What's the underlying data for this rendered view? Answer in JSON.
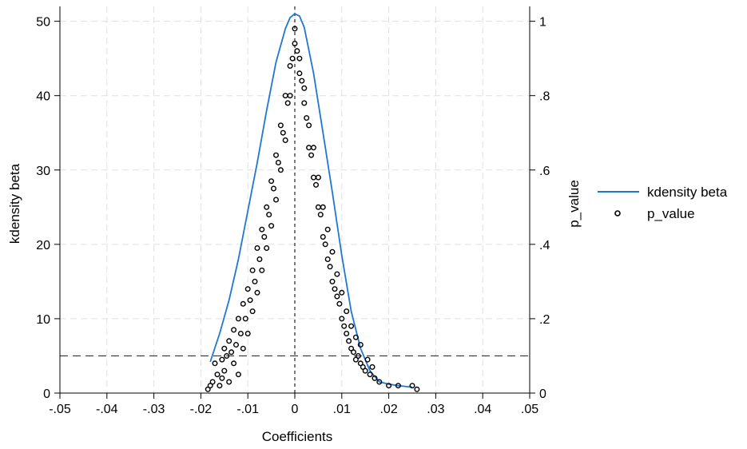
{
  "chart_data": {
    "type": "scatter",
    "title": "",
    "xlabel": "Coefficients",
    "ylabel_left": "kdensity beta",
    "ylabel_right": "p_value",
    "xlim": [
      -0.05,
      0.05
    ],
    "ylim_left": [
      0,
      52
    ],
    "ylim_right": [
      0,
      1.04
    ],
    "xticks": [
      -0.05,
      -0.04,
      -0.03,
      -0.02,
      -0.01,
      0,
      0.01,
      0.02,
      0.03,
      0.04,
      0.05
    ],
    "xtick_labels": [
      "-.05",
      "-.04",
      "-.03",
      "-.02",
      "-.01",
      "0",
      ".01",
      ".02",
      ".03",
      ".04",
      ".05"
    ],
    "yticks_left": [
      0,
      10,
      20,
      30,
      40,
      50
    ],
    "ytick_labels_left": [
      "0",
      "10",
      "20",
      "30",
      "40",
      "50"
    ],
    "yticks_right": [
      0,
      0.2,
      0.4,
      0.6,
      0.8,
      1
    ],
    "ytick_labels_right": [
      "0",
      ".2",
      ".4",
      ".6",
      ".8",
      "1"
    ],
    "grid": true,
    "legend_position": "right",
    "reference_lines": {
      "vertical_x": 0,
      "horizontal_p_value": 0.1
    },
    "colors": {
      "kdensity": "#1f77d4",
      "points": "#000000",
      "grid": "#e0e0e0",
      "reference": "#333333"
    },
    "series": [
      {
        "name": "kdensity beta",
        "kind": "line",
        "axis": "left",
        "x": [
          -0.018,
          -0.016,
          -0.014,
          -0.012,
          -0.01,
          -0.008,
          -0.006,
          -0.004,
          -0.002,
          -0.001,
          0,
          0.001,
          0.002,
          0.004,
          0.006,
          0.008,
          0.01,
          0.012,
          0.014,
          0.016,
          0.018,
          0.02,
          0.022,
          0.025
        ],
        "y": [
          4.2,
          8,
          12.5,
          18,
          24.5,
          31,
          38,
          44.5,
          49,
          50.5,
          51,
          50.7,
          49.2,
          43,
          35,
          27,
          18.5,
          11,
          6,
          3,
          1.5,
          1.2,
          1,
          0.8
        ]
      },
      {
        "name": "p_value",
        "kind": "points",
        "axis": "right",
        "x": [
          -0.0185,
          -0.018,
          -0.0175,
          -0.017,
          -0.0165,
          -0.016,
          -0.0155,
          -0.0155,
          -0.015,
          -0.015,
          -0.0145,
          -0.014,
          -0.014,
          -0.0135,
          -0.013,
          -0.013,
          -0.0125,
          -0.012,
          -0.012,
          -0.0115,
          -0.011,
          -0.011,
          -0.0105,
          -0.01,
          -0.01,
          -0.0095,
          -0.009,
          -0.009,
          -0.0085,
          -0.008,
          -0.008,
          -0.0075,
          -0.007,
          -0.007,
          -0.0065,
          -0.006,
          -0.006,
          -0.0055,
          -0.005,
          -0.005,
          -0.0045,
          -0.004,
          -0.004,
          -0.0035,
          -0.003,
          -0.003,
          -0.0025,
          -0.002,
          -0.002,
          -0.0015,
          -0.001,
          -0.001,
          -0.0005,
          0,
          0,
          0.0005,
          0.001,
          0.001,
          0.0015,
          0.002,
          0.002,
          0.0025,
          0.003,
          0.003,
          0.0035,
          0.004,
          0.004,
          0.0045,
          0.005,
          0.005,
          0.0055,
          0.006,
          0.006,
          0.0065,
          0.007,
          0.007,
          0.0075,
          0.008,
          0.008,
          0.0085,
          0.009,
          0.009,
          0.0095,
          0.01,
          0.01,
          0.0105,
          0.011,
          0.011,
          0.0115,
          0.012,
          0.012,
          0.0125,
          0.013,
          0.013,
          0.0135,
          0.014,
          0.014,
          0.0145,
          0.015,
          0.0155,
          0.016,
          0.0165,
          0.017,
          0.018,
          0.02,
          0.022,
          0.025,
          0.026
        ],
        "y": [
          0.01,
          0.02,
          0.03,
          0.08,
          0.05,
          0.02,
          0.09,
          0.04,
          0.12,
          0.06,
          0.1,
          0.14,
          0.03,
          0.11,
          0.17,
          0.08,
          0.13,
          0.2,
          0.05,
          0.16,
          0.24,
          0.12,
          0.2,
          0.28,
          0.16,
          0.25,
          0.33,
          0.22,
          0.3,
          0.39,
          0.27,
          0.36,
          0.44,
          0.33,
          0.42,
          0.5,
          0.39,
          0.48,
          0.57,
          0.45,
          0.55,
          0.64,
          0.52,
          0.62,
          0.72,
          0.6,
          0.7,
          0.8,
          0.68,
          0.78,
          0.88,
          0.8,
          0.9,
          0.98,
          0.94,
          0.92,
          0.86,
          0.9,
          0.84,
          0.78,
          0.82,
          0.74,
          0.66,
          0.72,
          0.64,
          0.58,
          0.66,
          0.56,
          0.5,
          0.58,
          0.48,
          0.42,
          0.5,
          0.4,
          0.36,
          0.44,
          0.34,
          0.3,
          0.38,
          0.28,
          0.26,
          0.32,
          0.24,
          0.2,
          0.27,
          0.18,
          0.16,
          0.22,
          0.14,
          0.12,
          0.18,
          0.11,
          0.09,
          0.15,
          0.1,
          0.08,
          0.13,
          0.07,
          0.06,
          0.09,
          0.05,
          0.07,
          0.04,
          0.03,
          0.02,
          0.02,
          0.02,
          0.01
        ]
      }
    ]
  }
}
